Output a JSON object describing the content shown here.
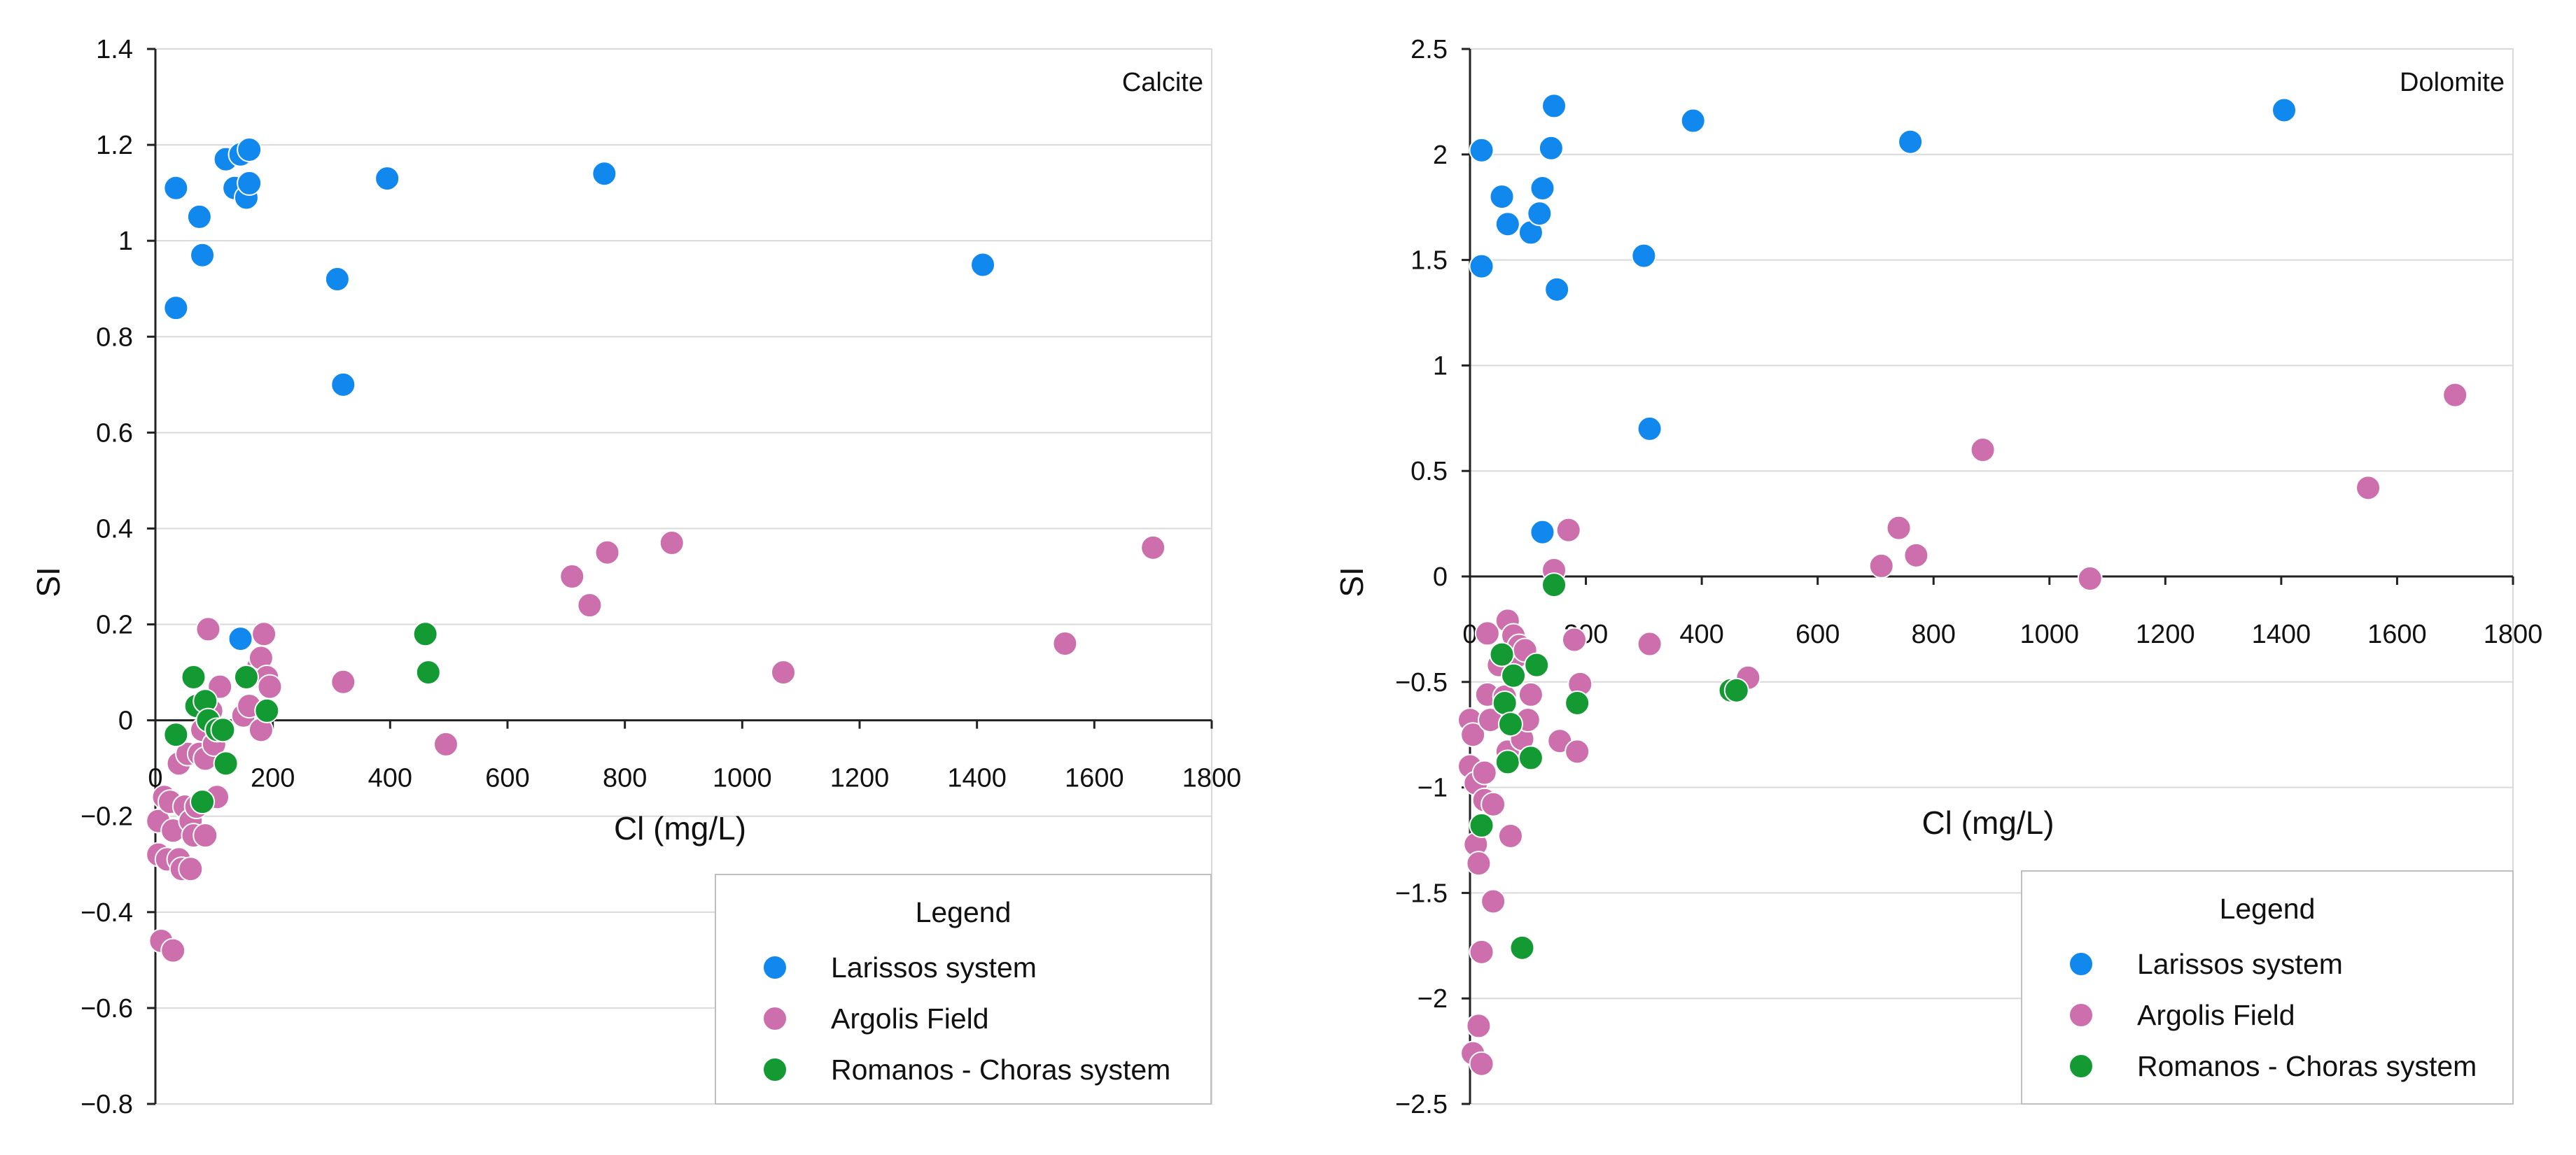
{
  "chart_data": [
    {
      "type": "scatter",
      "title": "Calcite",
      "xlabel": "Cl (mg/L)",
      "ylabel": "SI",
      "xlim": [
        0,
        1800
      ],
      "ylim": [
        -0.8,
        1.4
      ],
      "xticks": [
        0,
        200,
        400,
        600,
        800,
        1000,
        1200,
        1400,
        1600,
        1800
      ],
      "yticks": [
        -0.8,
        -0.6,
        -0.4,
        -0.2,
        0,
        0.2,
        0.4,
        0.6,
        0.8,
        1,
        1.2,
        1.4
      ],
      "xtick_labels": [
        "0",
        "200",
        "400",
        "600",
        "800",
        "1000",
        "1200",
        "1400",
        "1600",
        "1800"
      ],
      "ytick_labels": [
        "−0.8",
        "−0.6",
        "−0.4",
        "−0.2",
        "0",
        "0.2",
        "0.4",
        "0.6",
        "0.8",
        "1",
        "1.2",
        "1.4"
      ],
      "grid": "horizontal",
      "legend": {
        "title": "Legend",
        "placement": "bottom-right"
      },
      "series": [
        {
          "name": "Larissos system",
          "color": "#1088ee",
          "points": [
            [
              35,
              1.11
            ],
            [
              35,
              0.86
            ],
            [
              75,
              1.05
            ],
            [
              80,
              0.97
            ],
            [
              120,
              1.17
            ],
            [
              135,
              1.11
            ],
            [
              145,
              1.18
            ],
            [
              155,
              1.09
            ],
            [
              160,
              1.19
            ],
            [
              160,
              1.12
            ],
            [
              310,
              0.92
            ],
            [
              320,
              0.7
            ],
            [
              395,
              1.13
            ],
            [
              765,
              1.14
            ],
            [
              1410,
              0.95
            ],
            [
              145,
              0.17
            ]
          ]
        },
        {
          "name": "Argolis Field",
          "color": "#cc6fac",
          "points": [
            [
              5,
              -0.21
            ],
            [
              5,
              -0.28
            ],
            [
              10,
              -0.46
            ],
            [
              15,
              -0.16
            ],
            [
              20,
              -0.29
            ],
            [
              25,
              -0.17
            ],
            [
              30,
              -0.23
            ],
            [
              30,
              -0.48
            ],
            [
              40,
              -0.09
            ],
            [
              40,
              -0.29
            ],
            [
              45,
              -0.31
            ],
            [
              50,
              -0.18
            ],
            [
              55,
              -0.07
            ],
            [
              60,
              -0.21
            ],
            [
              60,
              -0.31
            ],
            [
              65,
              -0.24
            ],
            [
              70,
              -0.18
            ],
            [
              75,
              -0.07
            ],
            [
              80,
              -0.02
            ],
            [
              85,
              -0.24
            ],
            [
              85,
              -0.08
            ],
            [
              90,
              0.19
            ],
            [
              95,
              0.02
            ],
            [
              100,
              -0.05
            ],
            [
              105,
              -0.16
            ],
            [
              110,
              0.07
            ],
            [
              150,
              0.01
            ],
            [
              160,
              0.03
            ],
            [
              175,
              0.11
            ],
            [
              180,
              -0.02
            ],
            [
              180,
              0.13
            ],
            [
              185,
              0.18
            ],
            [
              190,
              0.09
            ],
            [
              195,
              0.07
            ],
            [
              320,
              0.08
            ],
            [
              495,
              -0.05
            ],
            [
              710,
              0.3
            ],
            [
              740,
              0.24
            ],
            [
              770,
              0.35
            ],
            [
              880,
              0.37
            ],
            [
              1070,
              0.1
            ],
            [
              1550,
              0.16
            ],
            [
              1700,
              0.36
            ]
          ]
        },
        {
          "name": "Romanos - Choras system",
          "color": "#139a33",
          "points": [
            [
              35,
              -0.03
            ],
            [
              65,
              0.09
            ],
            [
              70,
              0.03
            ],
            [
              80,
              -0.17
            ],
            [
              85,
              0.04
            ],
            [
              90,
              0.0
            ],
            [
              105,
              -0.02
            ],
            [
              115,
              -0.02
            ],
            [
              120,
              -0.09
            ],
            [
              155,
              0.09
            ],
            [
              190,
              0.02
            ],
            [
              460,
              0.18
            ],
            [
              465,
              0.1
            ]
          ]
        }
      ]
    },
    {
      "type": "scatter",
      "title": "Dolomite",
      "xlabel": "Cl (mg/L)",
      "ylabel": "SI",
      "xlim": [
        0,
        1800
      ],
      "ylim": [
        -2.5,
        2.5
      ],
      "xticks": [
        0,
        200,
        400,
        600,
        800,
        1000,
        1200,
        1400,
        1600,
        1800
      ],
      "yticks": [
        -2.5,
        -2,
        -1.5,
        -1,
        -0.5,
        0,
        0.5,
        1,
        1.5,
        2,
        2.5
      ],
      "xtick_labels": [
        "0",
        "200",
        "400",
        "600",
        "800",
        "1000",
        "1200",
        "1400",
        "1600",
        "1800"
      ],
      "ytick_labels": [
        "−2.5",
        "−2",
        "−1.5",
        "−1",
        "−0.5",
        "0",
        "0.5",
        "1",
        "1.5",
        "2",
        "2.5"
      ],
      "grid": "horizontal",
      "legend": {
        "title": "Legend",
        "placement": "bottom-right"
      },
      "series": [
        {
          "name": "Larissos system",
          "color": "#1088ee",
          "points": [
            [
              20,
              2.02
            ],
            [
              20,
              1.47
            ],
            [
              55,
              1.8
            ],
            [
              65,
              1.67
            ],
            [
              105,
              1.63
            ],
            [
              120,
              1.72
            ],
            [
              125,
              1.84
            ],
            [
              140,
              2.03
            ],
            [
              145,
              2.23
            ],
            [
              150,
              1.36
            ],
            [
              300,
              1.52
            ],
            [
              310,
              0.7
            ],
            [
              385,
              2.16
            ],
            [
              760,
              2.06
            ],
            [
              1405,
              2.21
            ],
            [
              125,
              0.21
            ]
          ]
        },
        {
          "name": "Argolis Field",
          "color": "#cc6fac",
          "points": [
            [
              0,
              -0.9
            ],
            [
              0,
              -0.68
            ],
            [
              5,
              -0.75
            ],
            [
              5,
              -2.26
            ],
            [
              10,
              -0.98
            ],
            [
              10,
              -1.27
            ],
            [
              15,
              -2.13
            ],
            [
              15,
              -1.36
            ],
            [
              20,
              -2.31
            ],
            [
              20,
              -1.78
            ],
            [
              25,
              -0.93
            ],
            [
              25,
              -1.06
            ],
            [
              30,
              -0.56
            ],
            [
              30,
              -0.27
            ],
            [
              35,
              -0.68
            ],
            [
              40,
              -1.08
            ],
            [
              40,
              -1.54
            ],
            [
              50,
              -0.42
            ],
            [
              60,
              -0.57
            ],
            [
              65,
              -0.21
            ],
            [
              65,
              -0.83
            ],
            [
              70,
              -1.23
            ],
            [
              75,
              -0.28
            ],
            [
              80,
              -0.38
            ],
            [
              85,
              -0.33
            ],
            [
              90,
              -0.77
            ],
            [
              95,
              -0.35
            ],
            [
              100,
              -0.68
            ],
            [
              105,
              -0.56
            ],
            [
              145,
              0.03
            ],
            [
              155,
              -0.78
            ],
            [
              170,
              0.22
            ],
            [
              180,
              -0.3
            ],
            [
              185,
              -0.83
            ],
            [
              190,
              -0.51
            ],
            [
              310,
              -0.32
            ],
            [
              480,
              -0.48
            ],
            [
              710,
              0.05
            ],
            [
              740,
              0.23
            ],
            [
              770,
              0.1
            ],
            [
              885,
              0.6
            ],
            [
              1070,
              -0.01
            ],
            [
              1550,
              0.42
            ],
            [
              1700,
              0.86
            ]
          ]
        },
        {
          "name": "Romanos - Choras system",
          "color": "#139a33",
          "points": [
            [
              20,
              -1.18
            ],
            [
              55,
              -0.37
            ],
            [
              60,
              -0.6
            ],
            [
              65,
              -0.88
            ],
            [
              70,
              -0.7
            ],
            [
              75,
              -0.47
            ],
            [
              90,
              -1.76
            ],
            [
              105,
              -0.86
            ],
            [
              115,
              -0.42
            ],
            [
              145,
              -0.04
            ],
            [
              185,
              -0.6
            ],
            [
              450,
              -0.54
            ],
            [
              460,
              -0.54
            ]
          ]
        }
      ]
    }
  ]
}
